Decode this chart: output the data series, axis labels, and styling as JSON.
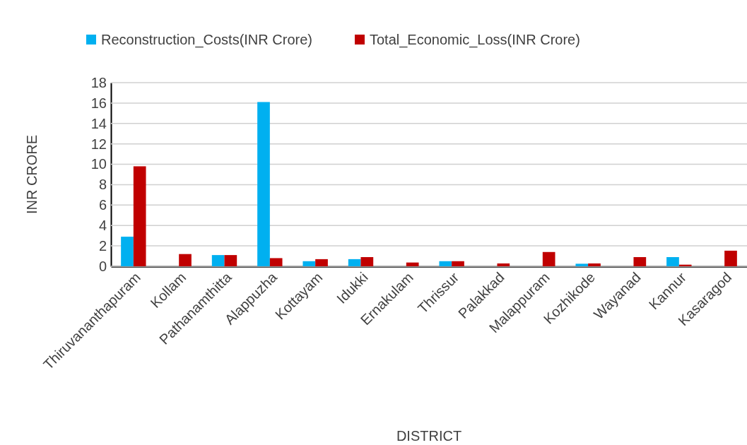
{
  "chart_data": {
    "type": "bar",
    "xlabel": "DISTRICT",
    "ylabel": "INR CRORE",
    "categories": [
      "Thiruvananthapuram",
      "Kollam",
      "Pathanamthitta",
      "Alappuzha",
      "Kottayam",
      "Idukki",
      "Ernakulam",
      "Thrissur",
      "Palakkad",
      "Malappuram",
      "Kozhikode",
      "Wayanad",
      "Kannur",
      "Kasaragod"
    ],
    "series": [
      {
        "name": "Reconstruction_Costs(INR Crore)",
        "color": "#00b0f0",
        "values": [
          2.9,
          0,
          1.1,
          16.1,
          0.5,
          0.7,
          0,
          0.5,
          0,
          0,
          0.25,
          0,
          0.9,
          0
        ]
      },
      {
        "name": "Total_Economic_Loss(INR Crore)",
        "color": "#c00000",
        "values": [
          9.8,
          1.2,
          1.1,
          0.8,
          0.7,
          0.9,
          0.37,
          0.5,
          0.28,
          1.4,
          0.28,
          0.9,
          0.16,
          1.53
        ]
      }
    ],
    "ylim": [
      0,
      18
    ],
    "yticks": [
      0,
      2,
      4,
      6,
      8,
      10,
      12,
      14,
      16,
      18
    ],
    "grid": "y",
    "legend": "top"
  }
}
